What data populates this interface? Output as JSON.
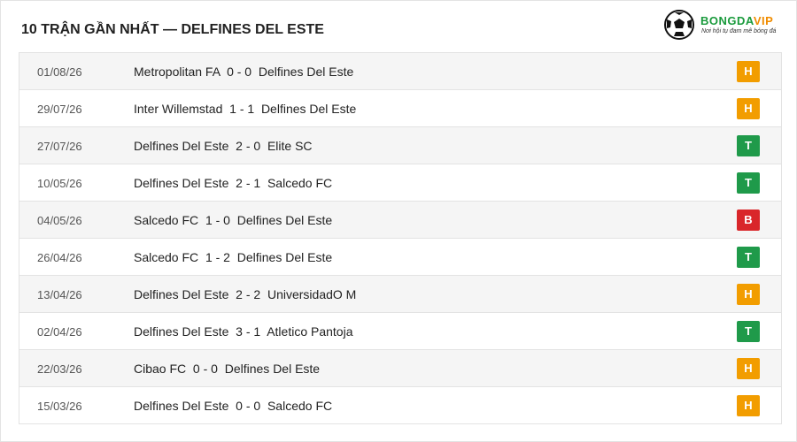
{
  "header": {
    "title": "10 TRẬN GẦN NHẤT — DELFINES DEL ESTE"
  },
  "logo": {
    "brand_a": "BONGDA",
    "brand_b": "VIP",
    "tagline": "Nơi hội tụ đam mê bóng đá"
  },
  "table": {
    "rows": [
      {
        "date": "01/08/26",
        "home": "Metropolitan FA",
        "score": "0 - 0",
        "away": "Delfines Del Este",
        "result": "H"
      },
      {
        "date": "29/07/26",
        "home": "Inter Willemstad",
        "score": "1 - 1",
        "away": "Delfines Del Este",
        "result": "H"
      },
      {
        "date": "27/07/26",
        "home": "Delfines Del Este",
        "score": "2 - 0",
        "away": "Elite SC",
        "result": "T"
      },
      {
        "date": "10/05/26",
        "home": "Delfines Del Este",
        "score": "2 - 1",
        "away": "Salcedo FC",
        "result": "T"
      },
      {
        "date": "04/05/26",
        "home": "Salcedo FC",
        "score": "1 - 0",
        "away": "Delfines Del Este",
        "result": "B"
      },
      {
        "date": "26/04/26",
        "home": "Salcedo FC",
        "score": "1 - 2",
        "away": "Delfines Del Este",
        "result": "T"
      },
      {
        "date": "13/04/26",
        "home": "Delfines Del Este",
        "score": "2 - 2",
        "away": "UniversidadO M",
        "result": "H"
      },
      {
        "date": "02/04/26",
        "home": "Delfines Del Este",
        "score": "3 - 1",
        "away": "Atletico Pantoja",
        "result": "T"
      },
      {
        "date": "22/03/26",
        "home": "Cibao FC",
        "score": "0 - 0",
        "away": "Delfines Del Este",
        "result": "H"
      },
      {
        "date": "15/03/26",
        "home": "Delfines Del Este",
        "score": "0 - 0",
        "away": "Salcedo FC",
        "result": "H"
      }
    ]
  }
}
